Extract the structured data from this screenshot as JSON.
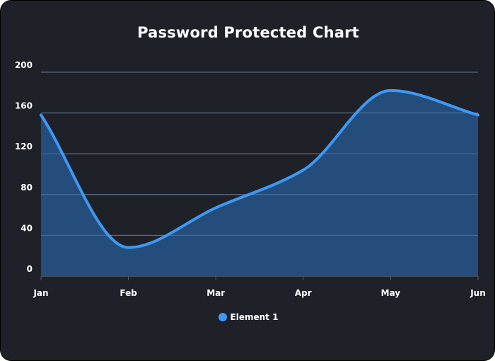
{
  "chart_data": {
    "type": "area",
    "title": "Password Protected Chart",
    "categories": [
      "Jan",
      "Feb",
      "Mar",
      "Apr",
      "May",
      "Jun"
    ],
    "series": [
      {
        "name": "Element 1",
        "values": [
          158,
          28,
          67,
          104,
          182,
          158
        ]
      }
    ],
    "ylim": [
      0,
      200
    ],
    "yticks": [
      0,
      40,
      80,
      120,
      160,
      200
    ],
    "grid": true,
    "legend": "bottom-center",
    "colors": {
      "line": "#3d99f5",
      "fill": "#25507f",
      "grid": "#5a5f6d",
      "background": "#1f2129"
    }
  }
}
